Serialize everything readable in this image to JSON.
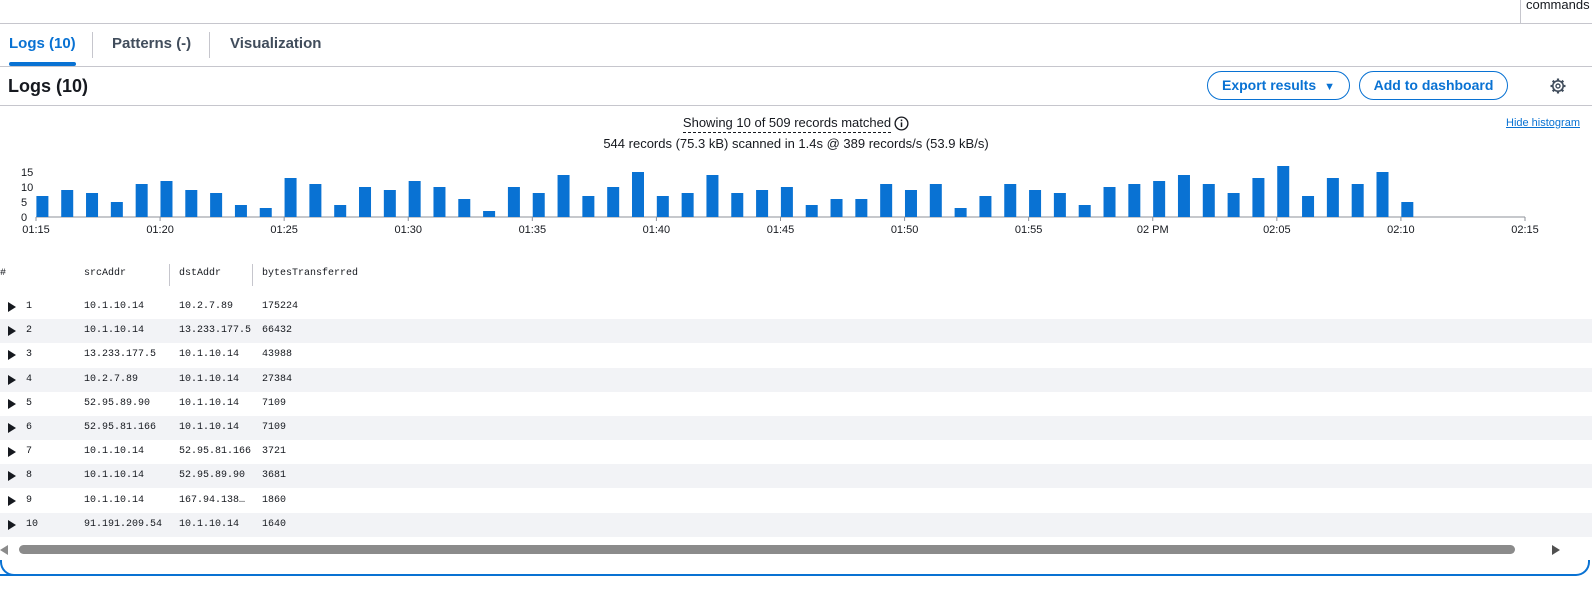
{
  "topbar": {
    "commands_label": "commands"
  },
  "tabs": [
    {
      "label": "Logs (10)",
      "active": true
    },
    {
      "label": "Patterns (-)",
      "active": false
    },
    {
      "label": "Visualization",
      "active": false
    }
  ],
  "header": {
    "title": "Logs (10)",
    "export_label": "Export results",
    "dashboard_label": "Add to dashboard"
  },
  "summary": {
    "matched": "Showing 10 of 509 records matched",
    "scanned": "544 records (75.3 kB) scanned in 1.4s @ 389 records/s (53.9 kB/s)",
    "hide_histogram": "Hide histogram"
  },
  "chart_data": {
    "type": "bar",
    "color": "#0972d3",
    "y_ticks": [
      "0",
      "5",
      "10",
      "15"
    ],
    "ylim": [
      0,
      17
    ],
    "x_ticks": [
      "01:15",
      "01:20",
      "01:25",
      "01:30",
      "01:35",
      "01:40",
      "01:45",
      "01:50",
      "01:55",
      "02 PM",
      "02:05",
      "02:10",
      "02:15"
    ],
    "values": [
      7,
      9,
      8,
      5,
      11,
      12,
      9,
      8,
      4,
      3,
      13,
      11,
      4,
      10,
      9,
      12,
      10,
      6,
      2,
      10,
      8,
      14,
      7,
      10,
      15,
      7,
      8,
      14,
      8,
      9,
      10,
      4,
      6,
      6,
      11,
      9,
      11,
      3,
      7,
      11,
      9,
      8,
      4,
      10,
      11,
      12,
      14,
      11,
      8,
      13,
      17,
      7,
      13,
      11,
      15,
      5
    ]
  },
  "table": {
    "columns": [
      "#",
      "srcAddr",
      "dstAddr",
      "bytesTransferred"
    ],
    "rows": [
      {
        "n": "1",
        "src": "10.1.10.14",
        "dst": "10.2.7.89",
        "bytes": "175224"
      },
      {
        "n": "2",
        "src": "10.1.10.14",
        "dst": "13.233.177.5",
        "bytes": "66432"
      },
      {
        "n": "3",
        "src": "13.233.177.5",
        "dst": "10.1.10.14",
        "bytes": "43988"
      },
      {
        "n": "4",
        "src": "10.2.7.89",
        "dst": "10.1.10.14",
        "bytes": "27384"
      },
      {
        "n": "5",
        "src": "52.95.89.90",
        "dst": "10.1.10.14",
        "bytes": "7109"
      },
      {
        "n": "6",
        "src": "52.95.81.166",
        "dst": "10.1.10.14",
        "bytes": "7109"
      },
      {
        "n": "7",
        "src": "10.1.10.14",
        "dst": "52.95.81.166",
        "bytes": "3721"
      },
      {
        "n": "8",
        "src": "10.1.10.14",
        "dst": "52.95.89.90",
        "bytes": "3681"
      },
      {
        "n": "9",
        "src": "10.1.10.14",
        "dst": "167.94.138…",
        "bytes": "1860"
      },
      {
        "n": "10",
        "src": "91.191.209.54",
        "dst": "10.1.10.14",
        "bytes": "1640"
      }
    ]
  }
}
